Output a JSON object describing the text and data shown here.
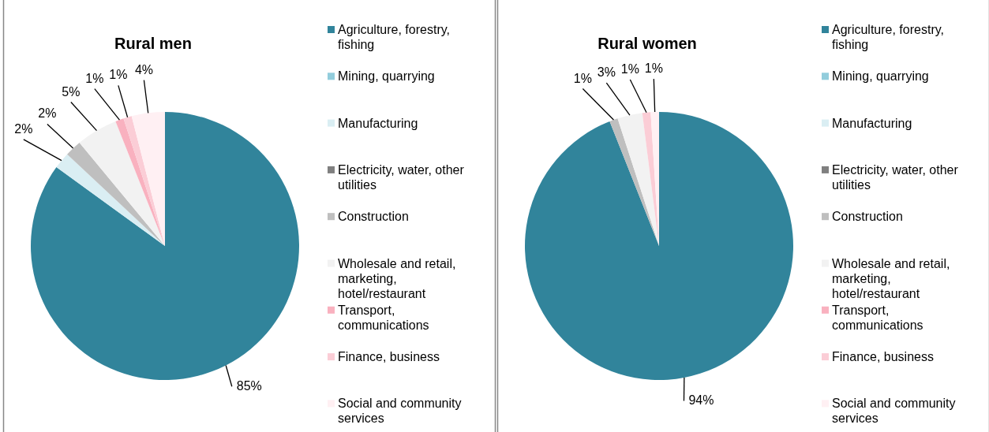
{
  "chart_data": [
    {
      "type": "pie",
      "title": "Rural men",
      "legend": "right",
      "categories": [
        "Agriculture, forestry, fishing",
        "Mining, quarrying",
        "Manufacturing",
        "Electricity, water, other utilities",
        "Construction",
        "Wholesale and retail, marketing, hotel/restaurant",
        "Transport, communications",
        "Finance, business",
        "Social and community services"
      ],
      "values": [
        85,
        0,
        2,
        0,
        2,
        5,
        1,
        1,
        4
      ],
      "value_labels": [
        "85%",
        null,
        "2%",
        null,
        "2%",
        "5%",
        "1%",
        "1%",
        "4%"
      ],
      "colors": [
        "#31849b",
        "#92cddc",
        "#daeef3",
        "#808080",
        "#bfbfbf",
        "#f2f2f2",
        "#f9b1bf",
        "#fbcdd6",
        "#fff0f3"
      ]
    },
    {
      "type": "pie",
      "title": "Rural women",
      "legend": "right",
      "categories": [
        "Agriculture, forestry, fishing",
        "Mining, quarrying",
        "Manufacturing",
        "Electricity, water, other utilities",
        "Construction",
        "Wholesale and retail, marketing, hotel/restaurant",
        "Transport, communications",
        "Finance, business",
        "Social and community services"
      ],
      "values": [
        94,
        0,
        0,
        0,
        1,
        3,
        0,
        1,
        1
      ],
      "value_labels": [
        "94%",
        null,
        null,
        null,
        "1%",
        "3%",
        null,
        "1%",
        "1%"
      ],
      "colors": [
        "#31849b",
        "#92cddc",
        "#daeef3",
        "#808080",
        "#bfbfbf",
        "#f2f2f2",
        "#f9b1bf",
        "#fbcdd6",
        "#fff0f3"
      ]
    }
  ]
}
